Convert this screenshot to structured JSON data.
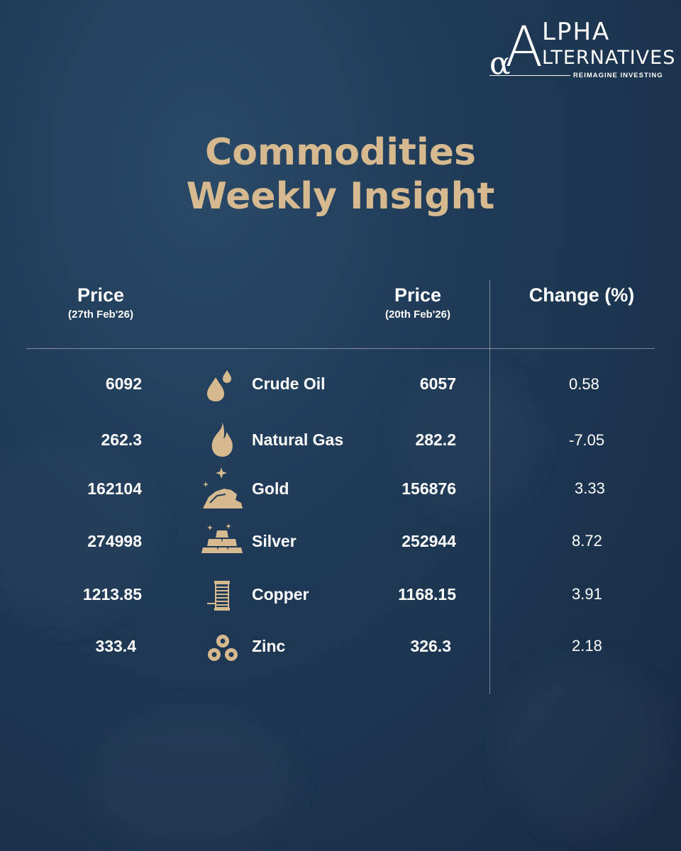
{
  "brand": {
    "alpha_symbol": "α",
    "letter_a": "A",
    "line1": "LPHA",
    "line2": "LTERNATIVES",
    "tagline": "REIMAGINE INVESTING"
  },
  "title": {
    "line1": "Commodities",
    "line2": "Weekly Insight"
  },
  "headers": {
    "current_price": "Price",
    "current_date": "(27th Feb'26)",
    "previous_price": "Price",
    "previous_date": "(20th Feb'26)",
    "change": "Change (%)"
  },
  "rows": [
    {
      "current": "6092",
      "name": "Crude Oil",
      "previous": "6057",
      "change": "0.58",
      "icon": "oil-drops-icon"
    },
    {
      "current": "262.3",
      "name": "Natural Gas",
      "previous": "282.2",
      "change": "-7.05",
      "icon": "flame-icon"
    },
    {
      "current": "162104",
      "name": "Gold",
      "previous": "156876",
      "change": "3.33",
      "icon": "gold-nugget-icon"
    },
    {
      "current": "274998",
      "name": "Silver",
      "previous": "252944",
      "change": "8.72",
      "icon": "silver-bars-icon"
    },
    {
      "current": "1213.85",
      "name": "Copper",
      "previous": "1168.15",
      "change": "3.91",
      "icon": "copper-coil-icon"
    },
    {
      "current": "333.4",
      "name": "Zinc",
      "previous": "326.3",
      "change": "2.18",
      "icon": "zinc-rings-icon"
    }
  ],
  "colors": {
    "accent": "#d6b98f",
    "background": "#1f3a57",
    "text": "#ffffff"
  }
}
